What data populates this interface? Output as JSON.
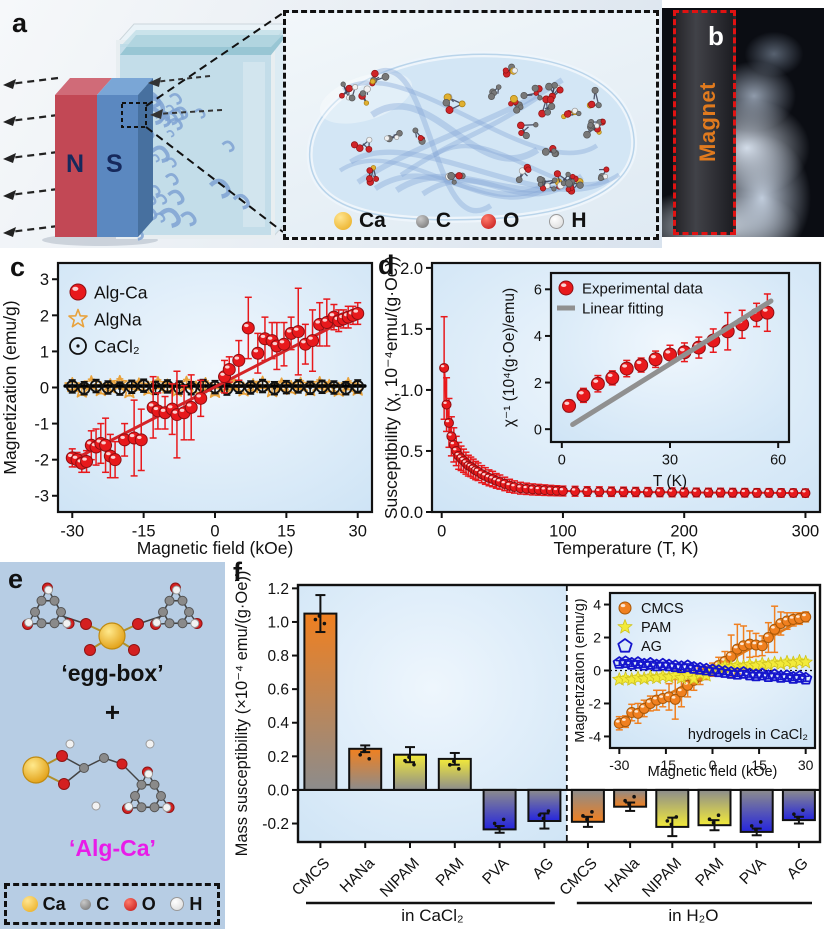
{
  "panels": {
    "a": {
      "label": "a",
      "magnet_n": "N",
      "magnet_s": "S"
    },
    "b": {
      "label": "b",
      "magnet_label": "Magnet"
    },
    "c": {
      "label": "c"
    },
    "d": {
      "label": "d"
    },
    "e": {
      "label": "e",
      "top_label": "‘egg-box’",
      "plus": "+",
      "bottom_label": "‘Alg-Ca’",
      "bottom_label_color": "#e81ce8"
    },
    "f": {
      "label": "f"
    }
  },
  "atom_legend": [
    {
      "name": "Ca",
      "color": "#f0b428"
    },
    {
      "name": "C",
      "color": "#8a8a8a"
    },
    {
      "name": "O",
      "color": "#d42020"
    },
    {
      "name": "H",
      "color": "#f5f5f5"
    }
  ],
  "chart_data": [
    {
      "id": "c",
      "type": "scatter",
      "xlabel": "Magnetic field (kOe)",
      "ylabel": "Magnetization (emu/g)",
      "xlim": [
        -33,
        33
      ],
      "ylim": [
        -3.45,
        3.45
      ],
      "xticks": [
        -30,
        -15,
        0,
        15,
        30
      ],
      "yticks": [
        -3,
        -2,
        -1,
        0,
        1,
        2,
        3
      ],
      "legend_order": [
        "Alg-Ca",
        "AlgNa",
        "CaCl₂"
      ],
      "series": [
        {
          "name": "AlgNa",
          "marker": "star-open",
          "color": "#e8a23c",
          "msize": 6,
          "yerr": 0.12,
          "x": [
            -30,
            -28,
            -26,
            -24,
            -22,
            -20,
            -18,
            -16,
            -14,
            -12,
            -10,
            -8,
            -6,
            -4,
            -2,
            0,
            2,
            4,
            6,
            8,
            10,
            12,
            14,
            16,
            18,
            20,
            22,
            24,
            26,
            28,
            30
          ],
          "y": [
            0.06,
            -0.09,
            0.11,
            -0.05,
            0.03,
            0.12,
            -0.11,
            0.05,
            -0.04,
            0.09,
            0.02,
            -0.07,
            0.1,
            -0.03,
            0.06,
            -0.1,
            0.04,
            0.08,
            -0.06,
            0.03,
            0.1,
            -0.08,
            0.05,
            -0.02,
            0.07,
            -0.05,
            0.09,
            0.01,
            -0.07,
            0.06,
            -0.04
          ]
        },
        {
          "name": "CaCl₂",
          "marker": "circle-dot",
          "color": "#111111",
          "msize": 5.5,
          "yerr": 0.18,
          "x": [
            -30,
            -27.5,
            -25,
            -22.5,
            -20,
            -17.5,
            -15,
            -12.5,
            -10,
            -7.5,
            -5,
            -2.5,
            0,
            2.5,
            5,
            7.5,
            10,
            12.5,
            15,
            17.5,
            20,
            22.5,
            25,
            27.5,
            30
          ],
          "y": [
            0.03,
            -0.02,
            0.04,
            0,
            -0.03,
            0.02,
            0.05,
            -0.01,
            0.03,
            0,
            -0.02,
            0.04,
            0.01,
            -0.03,
            0.02,
            0,
            0.04,
            -0.02,
            0.01,
            0.03,
            -0.01,
            0.02,
            0,
            -0.02,
            0.03
          ],
          "fit": {
            "x": [
              -31.5,
              31.5
            ],
            "y": [
              0.04,
              0.04
            ],
            "color": "#000000",
            "width": 3.5
          }
        },
        {
          "name": "Alg-Ca",
          "marker": "sphere",
          "color": "#e8191c",
          "edge": "#8e0e12",
          "msize": 6,
          "x": [
            -30,
            -29,
            -28,
            -27,
            -26,
            -25,
            -24,
            -23,
            -22,
            -21,
            -19,
            -17,
            -15.5,
            -13,
            -12,
            -10.5,
            -9,
            -8,
            -6.5,
            -5,
            -3,
            2,
            3,
            5,
            7,
            9,
            10.5,
            12,
            13,
            14.5,
            16,
            17.5,
            19,
            20.5,
            22,
            23.5,
            25,
            26,
            27,
            28,
            29,
            30
          ],
          "y": [
            -1.95,
            -2.0,
            -2.1,
            -2.05,
            -1.6,
            -1.65,
            -1.55,
            -1.6,
            -1.9,
            -2.0,
            -1.45,
            -1.4,
            -1.45,
            -0.55,
            -0.65,
            -0.7,
            -0.6,
            -0.75,
            -0.7,
            -0.55,
            -0.3,
            0.3,
            0.5,
            0.75,
            1.65,
            0.95,
            1.35,
            1.3,
            1.15,
            1.2,
            1.5,
            1.55,
            1.2,
            1.3,
            1.75,
            1.8,
            1.95,
            1.85,
            1.9,
            1.95,
            2.0,
            2.05
          ],
          "yerr": [
            0.25,
            0.2,
            0.25,
            0.3,
            0.4,
            0.5,
            0.55,
            0.75,
            0.6,
            0.5,
            0.45,
            1.05,
            0.85,
            0.85,
            0.5,
            0.45,
            0.7,
            1.2,
            0.75,
            0.9,
            0.5,
            0.45,
            0.35,
            0.55,
            0.85,
            0.55,
            0.6,
            0.5,
            0.65,
            0.6,
            0.45,
            1.2,
            0.55,
            0.85,
            0.6,
            0.65,
            0.35,
            0.3,
            0.25,
            0.3,
            0.25,
            0.3
          ],
          "fit": {
            "x": [
              -30.5,
              30.5
            ],
            "y": [
              -2.05,
              2.08
            ],
            "color": "#d42428",
            "width": 3
          }
        }
      ]
    },
    {
      "id": "d",
      "type": "scatter",
      "xlabel": "Temperature (T, K)",
      "ylabel": "Susceptibility (χ, 10⁻⁴emu/(g·Oe))",
      "xlim": [
        -8,
        312
      ],
      "ylim": [
        0,
        2.04
      ],
      "xticks": [
        0,
        100,
        200,
        300
      ],
      "yticks": [
        "0.0",
        "0.5",
        "1.0",
        "1.5",
        "2.0"
      ],
      "series": [
        {
          "name": "",
          "marker": "sphere",
          "color": "#e8191c",
          "edge": "#8e0e12",
          "msize": 4.5,
          "line": true,
          "x": [
            2,
            4,
            6,
            8,
            10,
            12,
            14,
            16,
            18,
            20,
            22,
            24,
            26,
            28,
            30,
            33,
            36,
            39,
            42,
            45,
            48,
            52,
            56,
            60,
            65,
            70,
            75,
            80,
            85,
            90,
            95,
            100,
            110,
            120,
            130,
            140,
            150,
            160,
            170,
            180,
            190,
            200,
            210,
            220,
            230,
            240,
            250,
            260,
            270,
            280,
            290,
            300
          ],
          "y": [
            1.18,
            0.88,
            0.73,
            0.62,
            0.55,
            0.5,
            0.46,
            0.44,
            0.42,
            0.4,
            0.38,
            0.37,
            0.355,
            0.34,
            0.33,
            0.31,
            0.295,
            0.28,
            0.27,
            0.255,
            0.245,
            0.23,
            0.215,
            0.205,
            0.195,
            0.19,
            0.185,
            0.182,
            0.179,
            0.176,
            0.174,
            0.172,
            0.17,
            0.168,
            0.167,
            0.166,
            0.165,
            0.164,
            0.163,
            0.162,
            0.161,
            0.16,
            0.16,
            0.159,
            0.159,
            0.158,
            0.158,
            0.157,
            0.157,
            0.156,
            0.156,
            0.155
          ],
          "yerr": [
            0.42,
            0.22,
            0.2,
            0.16,
            0.14,
            0.12,
            0.11,
            0.1,
            0.095,
            0.09,
            0.085,
            0.08,
            0.078,
            0.075,
            0.072,
            0.07,
            0.068,
            0.065,
            0.063,
            0.06,
            0.058,
            0.055,
            0.053,
            0.05,
            0.048,
            0.046,
            0.045,
            0.044,
            0.043,
            0.042,
            0.041,
            0.04,
            0.04,
            0.039,
            0.039,
            0.038,
            0.038,
            0.037,
            0.037,
            0.036,
            0.036,
            0.036,
            0.035,
            0.035,
            0.035,
            0.035,
            0.034,
            0.034,
            0.034,
            0.034,
            0.033,
            0.033
          ]
        }
      ]
    },
    {
      "id": "d_inset",
      "type": "scatter",
      "xlabel": "T (K)",
      "ylabel": "χ⁻¹ (10⁴(g·Oe)/emu)",
      "xlim": [
        -3,
        63
      ],
      "ylim": [
        -0.55,
        6.7
      ],
      "xticks": [
        0,
        30,
        60
      ],
      "yticks": [
        0,
        2,
        4,
        6
      ],
      "series": [
        {
          "name": "Experimental data",
          "marker": "sphere",
          "color": "#e8191c",
          "edge": "#8e0e12",
          "msize": 6.5,
          "x": [
            2,
            6,
            10,
            14,
            18,
            22,
            26,
            30,
            34,
            38,
            42,
            46,
            50,
            54,
            57
          ],
          "y": [
            1.0,
            1.45,
            1.95,
            2.2,
            2.6,
            2.75,
            3.0,
            3.2,
            3.3,
            3.5,
            3.8,
            4.2,
            4.5,
            4.9,
            5.0
          ],
          "yerr": [
            0.25,
            0.3,
            0.35,
            0.3,
            0.35,
            0.3,
            0.35,
            0.4,
            0.4,
            0.45,
            0.5,
            0.8,
            0.6,
            0.5,
            0.8
          ]
        },
        {
          "name": "Linear fitting",
          "marker": "line",
          "color": "#909090",
          "fit": {
            "x": [
              3,
              58
            ],
            "y": [
              0.2,
              5.5
            ],
            "color": "#909090",
            "width": 5
          }
        }
      ]
    },
    {
      "id": "f",
      "type": "bar",
      "ylabel": "Mass susceptibility (×10⁻⁴ emu/(g·Oe))",
      "ylim": [
        -0.31,
        1.22
      ],
      "yticks": [
        "-0.2",
        "0.0",
        "0.2",
        "0.4",
        "0.6",
        "0.8",
        "1.0",
        "1.2"
      ],
      "gray": "#8c8c8c",
      "groups": [
        {
          "label": "in CaCl₂",
          "categories": [
            "CMCS",
            "HANa",
            "NIPAM",
            "PAM",
            "PVA",
            "AG"
          ],
          "values": [
            1.05,
            0.245,
            0.21,
            0.185,
            -0.235,
            -0.185
          ],
          "errors": [
            0.11,
            0.02,
            0.045,
            0.035,
            0.02,
            0.045
          ],
          "colors": [
            "#f08020",
            "#f08020",
            "#f2ea3a",
            "#f2ea3a",
            "#2525dd",
            "#2525dd"
          ],
          "bg": "#d6e8f8"
        },
        {
          "label": "in H₂O",
          "categories": [
            "CMCS",
            "HANa",
            "NIPAM",
            "PAM",
            "PVA",
            "AG"
          ],
          "values": [
            -0.19,
            -0.1,
            -0.22,
            -0.21,
            -0.25,
            -0.18
          ],
          "errors": [
            0.03,
            0.025,
            0.055,
            0.03,
            0.02,
            0.02
          ],
          "colors": [
            "#f08020",
            "#f08020",
            "#f2ea3a",
            "#f2ea3a",
            "#2525dd",
            "#2525dd"
          ],
          "bg": "#ffffff"
        }
      ]
    },
    {
      "id": "f_inset",
      "type": "scatter",
      "xlabel": "Magnetic field (kOe)",
      "ylabel": "Magnetization (emu/g)",
      "xlim": [
        -33,
        33
      ],
      "ylim": [
        -4.7,
        4.7
      ],
      "xticks": [
        -30,
        -15,
        0,
        15,
        30
      ],
      "yticks": [
        -4,
        -2,
        0,
        2,
        4
      ],
      "zero_line": true,
      "annotation": "hydrogels in CaCl₂",
      "series": [
        {
          "name": "CMCS",
          "marker": "sphere",
          "color": "#f08020",
          "edge": "#a85808",
          "msize": 5,
          "x": [
            -30,
            -28,
            -26,
            -24,
            -22,
            -20,
            -18,
            -16,
            -14,
            -12,
            -10,
            -8,
            -6,
            -4,
            -2,
            0,
            2,
            4,
            6,
            8,
            10,
            12,
            14,
            16,
            18,
            20,
            22,
            24,
            26,
            28,
            30
          ],
          "y": [
            -3.2,
            -3.1,
            -2.55,
            -2.6,
            -2.3,
            -2.0,
            -1.8,
            -1.7,
            -1.6,
            -1.75,
            -1.3,
            -0.9,
            -0.6,
            -0.35,
            -0.15,
            0.05,
            0.3,
            0.55,
            0.85,
            1.3,
            1.5,
            1.6,
            1.55,
            1.5,
            2.0,
            2.5,
            2.85,
            3.0,
            3.1,
            3.15,
            3.25
          ],
          "yerr": [
            0.4,
            0.35,
            0.5,
            0.6,
            0.5,
            0.45,
            0.6,
            0.5,
            0.8,
            1.2,
            0.9,
            0.7,
            0.6,
            0.5,
            0.4,
            0.4,
            0.5,
            0.6,
            1.3,
            1.5,
            1.2,
            0.8,
            0.7,
            0.6,
            0.9,
            1.4,
            0.7,
            0.5,
            0.4,
            0.35,
            0.3
          ],
          "fit": {
            "x": [
              -30,
              30
            ],
            "y": [
              -3.1,
              3.2
            ],
            "color": "#e07818",
            "width": 2.5
          }
        },
        {
          "name": "PAM",
          "marker": "star",
          "color": "#f2ea3a",
          "edge": "#cfc320",
          "msize": 5.5,
          "yerr": 0.18,
          "x": [
            -30,
            -28,
            -26,
            -24,
            -22,
            -20,
            -18,
            -16,
            -14,
            -12,
            -10,
            -8,
            -6,
            -4,
            -2,
            0,
            2,
            4,
            6,
            8,
            10,
            12,
            14,
            16,
            18,
            20,
            22,
            24,
            26,
            28,
            30
          ],
          "y": [
            -0.55,
            -0.5,
            -0.55,
            -0.45,
            -0.5,
            -0.4,
            -0.45,
            -0.35,
            -0.4,
            -0.3,
            -0.45,
            -0.3,
            -0.5,
            -0.2,
            -0.3,
            0.0,
            0.15,
            0.25,
            0.2,
            0.3,
            0.25,
            0.35,
            0.3,
            0.4,
            0.35,
            0.45,
            0.4,
            0.5,
            0.45,
            0.55,
            0.5
          ]
        },
        {
          "name": "AG",
          "marker": "pentagon",
          "color": "#1515cc",
          "msize": 5,
          "yerr": 0.15,
          "x": [
            -30,
            -28,
            -26,
            -24,
            -22,
            -20,
            -18,
            -16,
            -14,
            -12,
            -10,
            -8,
            -6,
            -4,
            -2,
            0,
            2,
            4,
            6,
            8,
            10,
            12,
            14,
            16,
            18,
            20,
            22,
            24,
            26,
            28,
            30
          ],
          "y": [
            0.45,
            0.5,
            0.4,
            0.45,
            0.35,
            0.4,
            0.3,
            0.35,
            0.3,
            0.25,
            0.2,
            0.25,
            0.15,
            0.1,
            0.05,
            0.0,
            -0.05,
            -0.1,
            -0.15,
            -0.2,
            -0.15,
            -0.25,
            -0.3,
            -0.25,
            -0.35,
            -0.3,
            -0.4,
            -0.35,
            -0.45,
            -0.4,
            -0.5
          ]
        }
      ]
    }
  ]
}
